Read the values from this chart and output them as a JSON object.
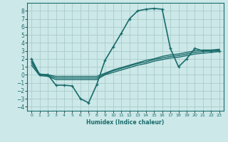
{
  "title": "",
  "xlabel": "Humidex (Indice chaleur)",
  "ylabel": "",
  "bg_color": "#cce8e8",
  "grid_color": "#aacccc",
  "line_color": "#1a6b6b",
  "xlim": [
    -0.5,
    23.5
  ],
  "ylim": [
    -4.5,
    9.0
  ],
  "xticks": [
    0,
    1,
    2,
    3,
    4,
    5,
    6,
    7,
    8,
    9,
    10,
    11,
    12,
    13,
    14,
    15,
    16,
    17,
    18,
    19,
    20,
    21,
    22,
    23
  ],
  "yticks": [
    -4,
    -3,
    -2,
    -1,
    0,
    1,
    2,
    3,
    4,
    5,
    6,
    7,
    8
  ],
  "series": [
    {
      "x": [
        0,
        1,
        2,
        3,
        4,
        5,
        6,
        7,
        8,
        9,
        10,
        11,
        12,
        13,
        14,
        15,
        16,
        17,
        18,
        19,
        20,
        21,
        22,
        23
      ],
      "y": [
        2.0,
        0.0,
        0.0,
        -1.3,
        -1.3,
        -1.4,
        -3.0,
        -3.5,
        -1.2,
        1.8,
        3.5,
        5.2,
        7.0,
        8.0,
        8.2,
        8.3,
        8.2,
        3.3,
        1.0,
        2.0,
        3.3,
        3.0,
        3.0,
        3.0
      ],
      "marker": "+",
      "lw": 1.2
    },
    {
      "x": [
        0,
        1,
        2,
        3,
        4,
        5,
        6,
        7,
        8,
        9,
        10,
        11,
        12,
        13,
        14,
        15,
        16,
        17,
        18,
        19,
        20,
        21,
        22,
        23
      ],
      "y": [
        1.5,
        0.0,
        -0.1,
        -0.4,
        -0.4,
        -0.4,
        -0.4,
        -0.4,
        -0.4,
        0.1,
        0.5,
        0.8,
        1.1,
        1.4,
        1.6,
        1.9,
        2.1,
        2.3,
        2.4,
        2.6,
        2.8,
        2.9,
        3.0,
        3.1
      ],
      "marker": null,
      "lw": 1.0
    },
    {
      "x": [
        0,
        1,
        2,
        3,
        4,
        5,
        6,
        7,
        8,
        9,
        10,
        11,
        12,
        13,
        14,
        15,
        16,
        17,
        18,
        19,
        20,
        21,
        22,
        23
      ],
      "y": [
        1.7,
        0.1,
        0.0,
        -0.2,
        -0.2,
        -0.2,
        -0.2,
        -0.2,
        -0.2,
        0.2,
        0.6,
        0.9,
        1.2,
        1.5,
        1.8,
        2.0,
        2.3,
        2.5,
        2.6,
        2.8,
        3.0,
        3.1,
        3.1,
        3.2
      ],
      "marker": null,
      "lw": 1.0
    },
    {
      "x": [
        0,
        1,
        2,
        3,
        4,
        5,
        6,
        7,
        8,
        9,
        10,
        11,
        12,
        13,
        14,
        15,
        16,
        17,
        18,
        19,
        20,
        21,
        22,
        23
      ],
      "y": [
        1.2,
        -0.1,
        -0.2,
        -0.6,
        -0.6,
        -0.6,
        -0.6,
        -0.6,
        -0.6,
        0.0,
        0.3,
        0.6,
        0.9,
        1.2,
        1.4,
        1.7,
        1.9,
        2.1,
        2.2,
        2.4,
        2.6,
        2.7,
        2.8,
        2.9
      ],
      "marker": null,
      "lw": 1.0
    }
  ]
}
